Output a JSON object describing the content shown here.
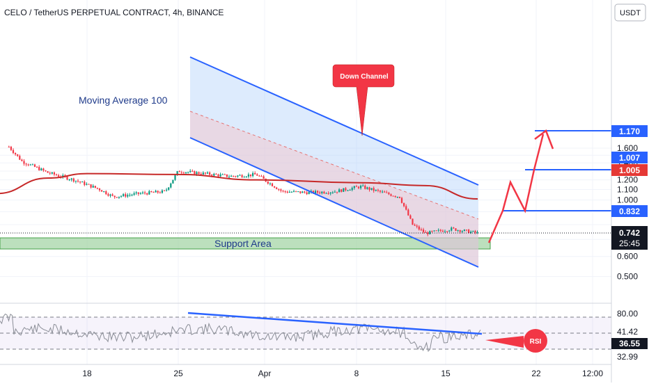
{
  "header": {
    "title": "CELO / TetherUS PERPETUAL CONTRACT, 4h, BINANCE",
    "currency_button": "USDT"
  },
  "annotations": {
    "moving_average": "Moving Average  100",
    "down_channel": "Down Channel",
    "support_area": "Support Area",
    "rsi": "RSI"
  },
  "price_badges": {
    "current": "0.742",
    "countdown": "25:45",
    "target_1": "0.832",
    "target_2": "1.005",
    "target_3": "1.170",
    "level_1007": "1.007"
  },
  "rsi_scale": {
    "ticks": [
      "80.00",
      "41.42",
      "36.55",
      "32.99"
    ]
  },
  "colors": {
    "up": "#089981",
    "down": "#f23645",
    "ma": "#c62828",
    "channel": "#2962ff",
    "support_fill": "#a5d6a7",
    "badge_red": "#e53935",
    "badge_blue": "#2962ff"
  },
  "chart_data": {
    "type": "candlestick",
    "title": "CELO / TetherUS PERPETUAL CONTRACT, 4h, BINANCE",
    "y_scale": "log",
    "ylim": [
      0.46,
      1.8
    ],
    "price_ticks": [
      0.5,
      0.6,
      0.7,
      0.8,
      0.9,
      1.0,
      1.1,
      1.2,
      1.3,
      1.4,
      1.5,
      1.6
    ],
    "x_ticks": [
      "18",
      "25",
      "Apr",
      "8",
      "15",
      "22",
      "12:00"
    ],
    "legend": "none",
    "grid": true,
    "series": [
      {
        "name": "CELO/USDT",
        "close_path": [
          {
            "date": "2024-03-12",
            "close": 1.62
          },
          {
            "date": "2024-03-13",
            "close": 1.42
          },
          {
            "date": "2024-03-15",
            "close": 1.28
          },
          {
            "date": "2024-03-17",
            "close": 1.2
          },
          {
            "date": "2024-03-19",
            "close": 1.1
          },
          {
            "date": "2024-03-20",
            "close": 1.03
          },
          {
            "date": "2024-03-22",
            "close": 1.06
          },
          {
            "date": "2024-03-24",
            "close": 1.08
          },
          {
            "date": "2024-03-25",
            "close": 1.3
          },
          {
            "date": "2024-03-27",
            "close": 1.27
          },
          {
            "date": "2024-03-29",
            "close": 1.24
          },
          {
            "date": "2024-03-31",
            "close": 1.26
          },
          {
            "date": "2024-04-02",
            "close": 1.08
          },
          {
            "date": "2024-04-04",
            "close": 1.07
          },
          {
            "date": "2024-04-06",
            "close": 1.08
          },
          {
            "date": "2024-04-08",
            "close": 1.13
          },
          {
            "date": "2024-04-10",
            "close": 1.06
          },
          {
            "date": "2024-04-11",
            "close": 1.03
          },
          {
            "date": "2024-04-12",
            "close": 0.8
          },
          {
            "date": "2024-04-13",
            "close": 0.74
          },
          {
            "date": "2024-04-15",
            "close": 0.77
          },
          {
            "date": "2024-04-17",
            "close": 0.742
          }
        ]
      },
      {
        "name": "Moving Average 100",
        "values": [
          {
            "date": "2024-03-11",
            "value": 1.06
          },
          {
            "date": "2024-03-15",
            "value": 1.22
          },
          {
            "date": "2024-03-18",
            "value": 1.27
          },
          {
            "date": "2024-03-25",
            "value": 1.26
          },
          {
            "date": "2024-03-31",
            "value": 1.2
          },
          {
            "date": "2024-04-08",
            "value": 1.17
          },
          {
            "date": "2024-04-13",
            "value": 1.14
          },
          {
            "date": "2024-04-17",
            "value": 1.01
          }
        ]
      }
    ],
    "channel": {
      "name": "Down Channel",
      "upper": [
        {
          "date": "2024-03-26",
          "price": 1.48
        },
        {
          "date": "2024-04-17",
          "price": 0.95
        }
      ],
      "lower": [
        {
          "date": "2024-03-26",
          "price": 1.14
        },
        {
          "date": "2024-04-17",
          "price": 0.59
        }
      ]
    },
    "support_area": {
      "low": 0.7,
      "high": 0.726
    },
    "projection": [
      0.72,
      0.832,
      0.946,
      0.832,
      1.005,
      1.18,
      1.1
    ],
    "levels": [
      0.742,
      0.832,
      1.005,
      1.007,
      1.17
    ],
    "rsi": {
      "levels_printed": [
        80.0,
        41.42,
        36.55,
        32.99
      ],
      "last": 36.55,
      "trendline": "descending from ~58 (Mar 26) to ~41 (Apr 17)"
    }
  }
}
